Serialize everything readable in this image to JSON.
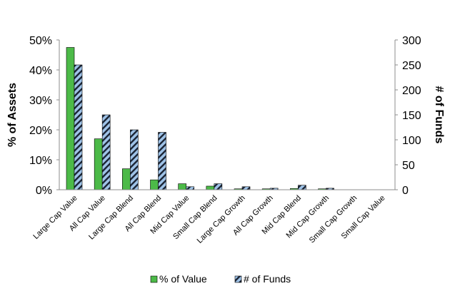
{
  "chart_data": {
    "type": "bar",
    "categories": [
      "Large Cap Value",
      "All Cap Value",
      "Large Cap Blend",
      "All Cap Blend",
      "Mid Cap Value",
      "Small Cap Blend",
      "Large Cap Growth",
      "All Cap Growth",
      "Mid Cap Blend",
      "Mid Cap Growth",
      "Small Cap Growth",
      "Small Cap Value"
    ],
    "series": [
      {
        "name": "% of Value",
        "axis": "left",
        "color": "#4cba48",
        "pattern": "solid",
        "values": [
          47.5,
          17.0,
          7.0,
          3.3,
          2.0,
          1.2,
          0.3,
          0.3,
          0.4,
          0.3,
          0,
          0
        ]
      },
      {
        "name": "# of Funds",
        "axis": "right",
        "color": "#9fc3e8",
        "pattern": "diagonal-stripes",
        "values": [
          250,
          150,
          120,
          115,
          6,
          12,
          6,
          3,
          9,
          3,
          0,
          0
        ]
      }
    ],
    "ylabel_left": "% of Assets",
    "ylabel_right": "# of Funds",
    "ylim_left": [
      0,
      50
    ],
    "ylim_right": [
      0,
      300
    ],
    "yticks_left": [
      "0%",
      "10%",
      "20%",
      "30%",
      "40%",
      "50%"
    ],
    "yticks_right": [
      "0",
      "50",
      "100",
      "150",
      "200",
      "250",
      "300"
    ],
    "grid": false,
    "legend_position": "bottom"
  }
}
